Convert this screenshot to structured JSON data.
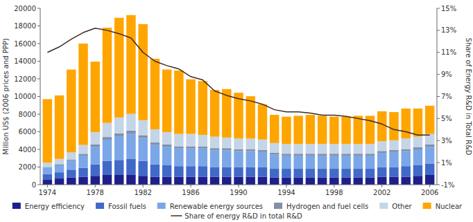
{
  "chart_data": {
    "type": "bar",
    "stacked": true,
    "grid": false,
    "legend": "bottom",
    "ylabel": "Million US$ (2006 prices and PPP)",
    "y2label": "Share of Energy R&D in Total R&D",
    "x": [
      1974,
      1975,
      1976,
      1977,
      1978,
      1979,
      1980,
      1981,
      1982,
      1983,
      1984,
      1985,
      1986,
      1987,
      1988,
      1989,
      1990,
      1991,
      1992,
      1993,
      1994,
      1995,
      1996,
      1997,
      1998,
      1999,
      2000,
      2001,
      2002,
      2003,
      2004,
      2005,
      2006
    ],
    "xlim": [
      1973.4,
      2006.6
    ],
    "xticks": [
      1974,
      1978,
      1982,
      1986,
      1990,
      1994,
      1998,
      2002,
      2006
    ],
    "ylim": [
      0,
      20000
    ],
    "yticks": [
      0,
      2000,
      4000,
      6000,
      8000,
      10000,
      12000,
      14000,
      16000,
      18000,
      20000
    ],
    "y2lim": [
      -1,
      15
    ],
    "y2ticks": [
      {
        "value": -1,
        "label": "-1%"
      },
      {
        "value": 1,
        "label": "1%"
      },
      {
        "value": 3,
        "label": "3%"
      },
      {
        "value": 5,
        "label": "5%"
      },
      {
        "value": 7,
        "label": "7%"
      },
      {
        "value": 9,
        "label": "9%"
      },
      {
        "value": 11,
        "label": "11%"
      },
      {
        "value": 13,
        "label": "13%"
      },
      {
        "value": 15,
        "label": "15%"
      }
    ],
    "series": [
      {
        "name": "Energy efficiency",
        "color": "#1F1F8C",
        "values": [
          600,
          700,
          800,
          900,
          1000,
          1100,
          1100,
          1100,
          1000,
          900,
          900,
          900,
          900,
          900,
          900,
          900,
          900,
          900,
          900,
          800,
          800,
          800,
          800,
          800,
          800,
          800,
          800,
          800,
          900,
          900,
          900,
          1000,
          1100
        ]
      },
      {
        "name": "Fossil fuels",
        "color": "#4169C8",
        "values": [
          600,
          700,
          900,
          1000,
          1300,
          1600,
          1700,
          1800,
          1700,
          1400,
          1300,
          1200,
          1200,
          1200,
          1100,
          1100,
          1100,
          1100,
          1100,
          1000,
          1000,
          1000,
          1000,
          1000,
          1000,
          1000,
          1000,
          1000,
          1100,
          1100,
          1200,
          1200,
          1300
        ]
      },
      {
        "name": "Renewable energy sources",
        "color": "#7BA7E8",
        "values": [
          700,
          800,
          1000,
          1400,
          2000,
          2400,
          2700,
          2900,
          2600,
          2200,
          2100,
          2000,
          2000,
          2000,
          1900,
          1900,
          1800,
          1800,
          1700,
          1600,
          1500,
          1500,
          1500,
          1500,
          1500,
          1500,
          1500,
          1500,
          1600,
          1700,
          1700,
          1800,
          1900
        ]
      },
      {
        "name": "Hydrogen and fuel cells",
        "color": "#8090A8",
        "values": [
          100,
          120,
          150,
          200,
          250,
          300,
          320,
          330,
          310,
          280,
          260,
          250,
          250,
          240,
          240,
          240,
          230,
          230,
          220,
          220,
          210,
          210,
          210,
          210,
          210,
          210,
          210,
          210,
          220,
          230,
          230,
          240,
          250
        ]
      },
      {
        "name": "Other",
        "color": "#C5D5E8",
        "values": [
          500,
          600,
          800,
          1000,
          1400,
          1600,
          1800,
          1900,
          1700,
          1500,
          1400,
          1400,
          1400,
          1300,
          1300,
          1200,
          1200,
          1200,
          1200,
          1100,
          1100,
          1100,
          1100,
          1100,
          1100,
          1100,
          1100,
          1100,
          1100,
          1100,
          1200,
          1200,
          1200
        ]
      },
      {
        "name": "Nuclear",
        "color": "#FFA500",
        "values": [
          7200,
          7200,
          9400,
          11500,
          8000,
          10800,
          11300,
          11200,
          10900,
          8000,
          7100,
          7200,
          6200,
          6100,
          5300,
          5500,
          5200,
          4800,
          4000,
          3200,
          3100,
          3200,
          3300,
          3200,
          3100,
          3100,
          3200,
          3200,
          3400,
          3200,
          3400,
          3200,
          3200
        ]
      },
      {
        "name": "Share of energy R&D in total R&D",
        "color": "#3D2B1F",
        "type": "line",
        "axis": "y2",
        "values": [
          11.0,
          11.5,
          12.2,
          12.8,
          13.2,
          13.0,
          12.7,
          12.3,
          11.0,
          10.2,
          9.8,
          9.5,
          8.8,
          8.5,
          7.5,
          7.1,
          6.8,
          6.6,
          6.3,
          5.8,
          5.6,
          5.6,
          5.5,
          5.3,
          5.3,
          5.2,
          5.0,
          4.8,
          4.5,
          4.0,
          3.8,
          3.5,
          3.5
        ]
      }
    ]
  }
}
